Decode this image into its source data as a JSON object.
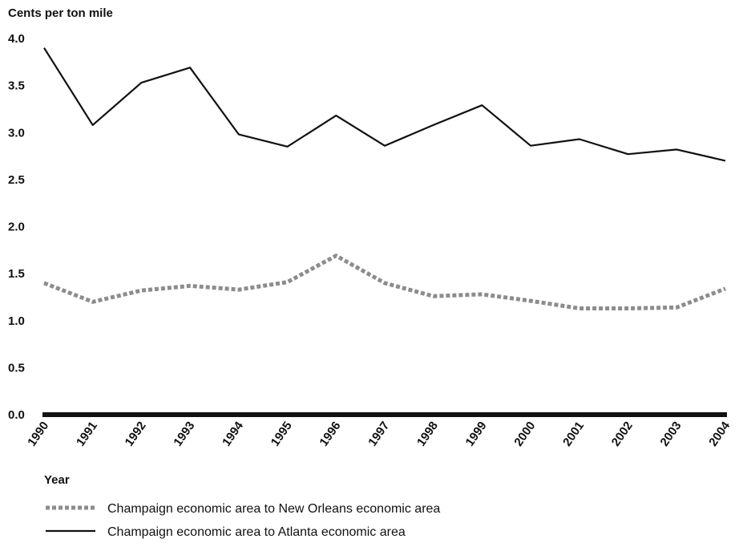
{
  "chart_data": {
    "type": "line",
    "title": "",
    "ylabel": "Cents per ton mile",
    "xlabel": "Year",
    "ylim": [
      0,
      4.0
    ],
    "yticks": [
      "0.0",
      "0.5",
      "1.0",
      "1.5",
      "2.0",
      "2.5",
      "3.0",
      "3.5",
      "4.0"
    ],
    "categories": [
      "1990",
      "1991",
      "1992",
      "1993",
      "1994",
      "1995",
      "1996",
      "1997",
      "1998",
      "1999",
      "2000",
      "2001",
      "2002",
      "2003",
      "2004"
    ],
    "series": [
      {
        "name": "Champaign economic area to New Orleans economic area",
        "style": "dotted",
        "color": "#8c8c8c",
        "values": [
          1.4,
          1.2,
          1.32,
          1.37,
          1.33,
          1.41,
          1.69,
          1.4,
          1.26,
          1.28,
          1.21,
          1.13,
          1.13,
          1.14,
          1.34
        ]
      },
      {
        "name": "Champaign economic area to Atlanta economic area",
        "style": "solid",
        "color": "#111111",
        "values": [
          3.9,
          3.08,
          3.53,
          3.69,
          2.98,
          2.85,
          3.18,
          2.86,
          3.08,
          3.29,
          2.86,
          2.93,
          2.77,
          2.82,
          2.7
        ]
      }
    ],
    "legend_position": "bottom-left",
    "grid": false
  }
}
